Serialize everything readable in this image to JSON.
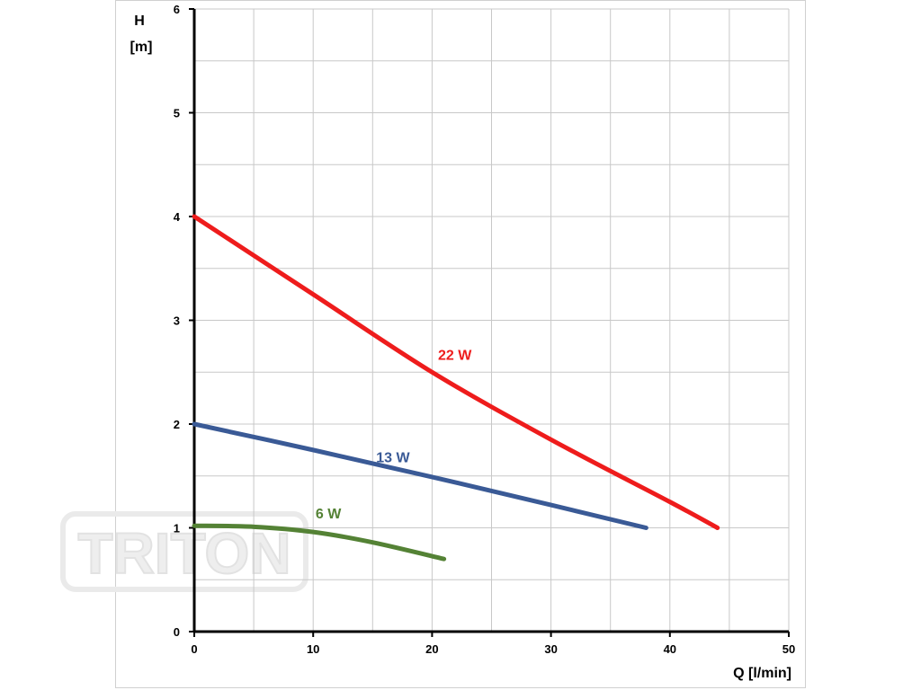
{
  "chart_data": {
    "type": "line",
    "title": "",
    "xlabel": "Q [l/min]",
    "ylabel_top": "H",
    "ylabel_unit": "[m]",
    "xlim": [
      0,
      50
    ],
    "ylim": [
      0,
      6
    ],
    "x_ticks": [
      0,
      10,
      20,
      30,
      40,
      50
    ],
    "y_ticks": [
      0,
      1,
      2,
      3,
      4,
      5,
      6
    ],
    "grid": true,
    "watermark": "TRITON",
    "series": [
      {
        "name": "22 W",
        "color": "#ee1c1c",
        "x": [
          0,
          10,
          20,
          30,
          40,
          44
        ],
        "y": [
          4.0,
          3.25,
          2.5,
          1.85,
          1.25,
          1.0
        ]
      },
      {
        "name": "13 W",
        "color": "#3a5a96",
        "x": [
          0,
          10,
          20,
          30,
          38
        ],
        "y": [
          2.0,
          1.75,
          1.49,
          1.22,
          1.0
        ]
      },
      {
        "name": "6 W",
        "color": "#548235",
        "x": [
          0,
          5,
          10,
          15,
          21
        ],
        "y": [
          1.02,
          1.01,
          0.96,
          0.86,
          0.7
        ]
      }
    ],
    "labels": [
      {
        "series": 0,
        "x": 20.5,
        "y": 2.62
      },
      {
        "series": 1,
        "x": 15.3,
        "y": 1.63
      },
      {
        "series": 2,
        "x": 10.2,
        "y": 1.09
      }
    ]
  }
}
